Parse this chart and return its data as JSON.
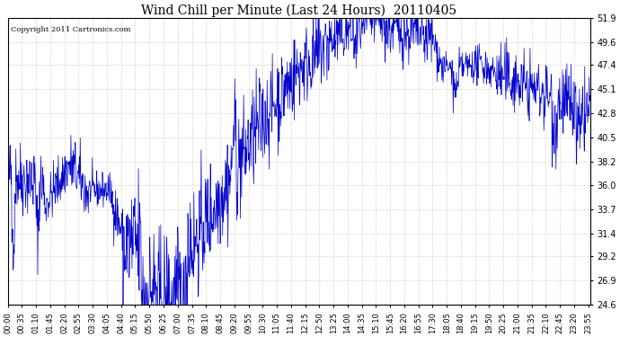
{
  "title": "Wind Chill per Minute (Last 24 Hours)  20110405",
  "copyright": "Copyright 2011 Cartronics.com",
  "line_color": "#0000cc",
  "background_color": "#ffffff",
  "grid_color": "#cccccc",
  "yticks": [
    24.6,
    26.9,
    29.2,
    31.4,
    33.7,
    36.0,
    38.2,
    40.5,
    42.8,
    45.1,
    47.4,
    49.6,
    51.9
  ],
  "xtick_labels": [
    "00:00",
    "00:35",
    "01:10",
    "01:45",
    "02:20",
    "02:55",
    "03:30",
    "04:05",
    "04:40",
    "05:15",
    "05:50",
    "06:25",
    "07:00",
    "07:35",
    "08:10",
    "08:45",
    "09:20",
    "09:55",
    "10:30",
    "11:05",
    "11:40",
    "12:15",
    "12:50",
    "13:25",
    "14:00",
    "14:35",
    "15:10",
    "15:45",
    "16:20",
    "16:55",
    "17:30",
    "18:05",
    "18:40",
    "19:15",
    "19:50",
    "20:25",
    "21:00",
    "21:35",
    "22:10",
    "22:45",
    "23:20",
    "23:55"
  ],
  "ylim": [
    24.6,
    51.9
  ],
  "figsize": [
    6.9,
    3.75
  ],
  "dpi": 100
}
